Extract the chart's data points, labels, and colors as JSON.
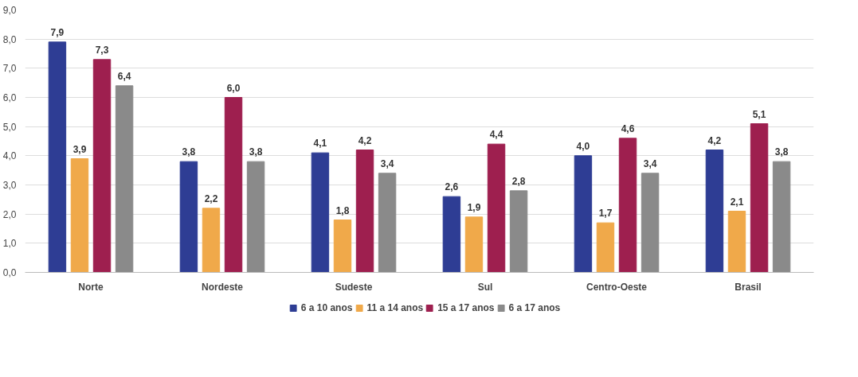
{
  "chart_data": {
    "type": "bar",
    "categories": [
      "Norte",
      "Nordeste",
      "Sudeste",
      "Sul",
      "Centro-Oeste",
      "Brasil"
    ],
    "series": [
      {
        "name": "6 a 10 anos",
        "color": "#2e3d94",
        "values": [
          7.9,
          3.8,
          4.1,
          2.6,
          4.0,
          4.2
        ],
        "value_labels": [
          "7,9",
          "3,8",
          "4,1",
          "2,6",
          "4,0",
          "4,2"
        ]
      },
      {
        "name": "11 a 14 anos",
        "color": "#f0a94a",
        "values": [
          3.9,
          2.2,
          1.8,
          1.9,
          1.7,
          2.1
        ],
        "value_labels": [
          "3,9",
          "2,2",
          "1,8",
          "1,9",
          "1,7",
          "2,1"
        ]
      },
      {
        "name": "15 a 17 anos",
        "color": "#9e1f4f",
        "values": [
          7.3,
          6.0,
          4.2,
          4.4,
          4.6,
          5.1
        ],
        "value_labels": [
          "7,3",
          "6,0",
          "4,2",
          "4,4",
          "4,6",
          "5,1"
        ]
      },
      {
        "name": "6 a 17 anos",
        "color": "#8a8a8a",
        "values": [
          6.4,
          3.8,
          3.4,
          2.8,
          3.4,
          3.8
        ],
        "value_labels": [
          "6,4",
          "3,8",
          "3,4",
          "2,8",
          "3,4",
          "3,8"
        ]
      }
    ],
    "ylim": [
      0,
      9
    ],
    "yticks": [
      {
        "value": 0,
        "label": "0,0"
      },
      {
        "value": 1,
        "label": "1,0"
      },
      {
        "value": 2,
        "label": "2,0"
      },
      {
        "value": 3,
        "label": "3,0"
      },
      {
        "value": 4,
        "label": "4,0"
      },
      {
        "value": 5,
        "label": "5,0"
      },
      {
        "value": 6,
        "label": "6,0"
      },
      {
        "value": 7,
        "label": "7,0"
      },
      {
        "value": 8,
        "label": "8,0"
      },
      {
        "value": 9,
        "label": "9,0"
      }
    ],
    "grid": "y",
    "legend": "bottom"
  }
}
